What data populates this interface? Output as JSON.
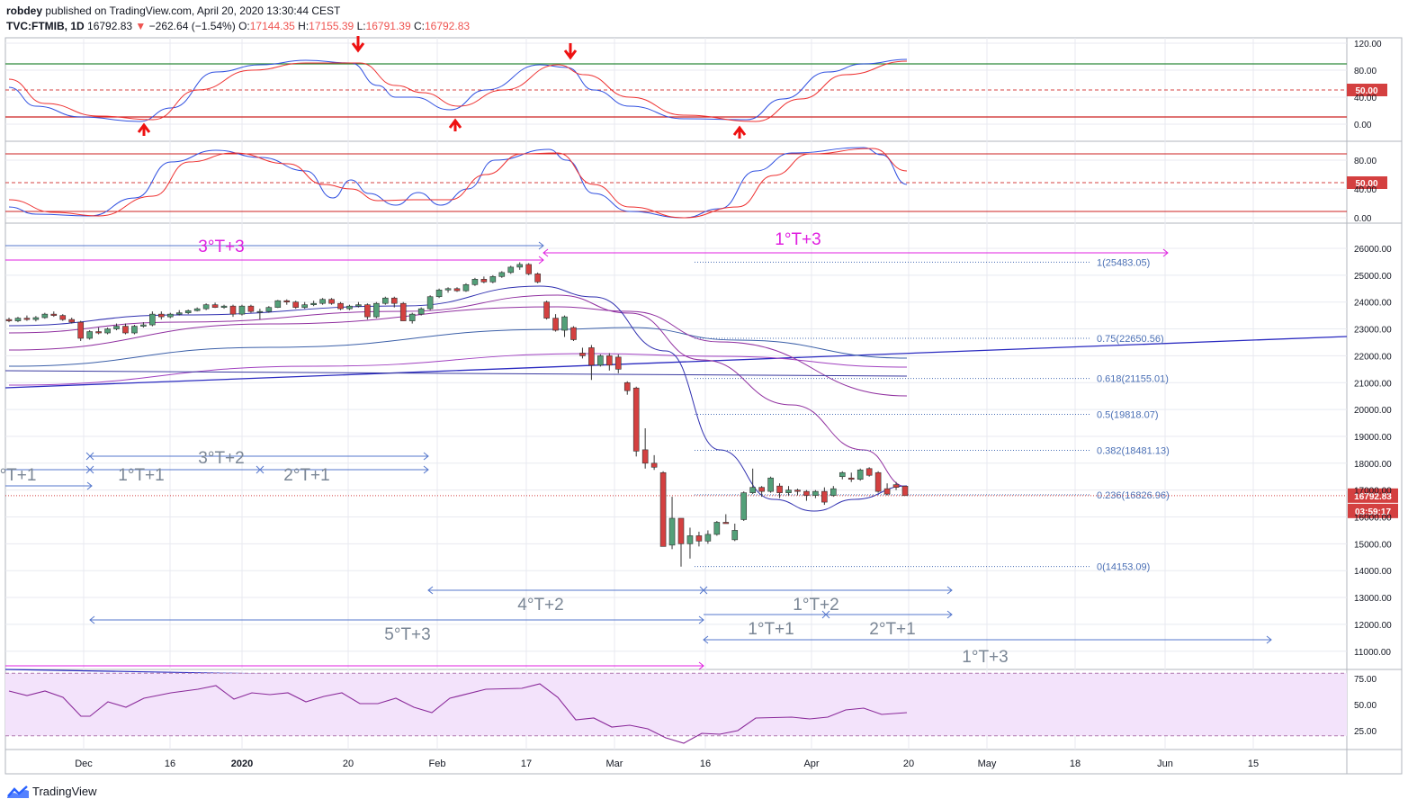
{
  "header": {
    "author": "robdey",
    "published": "published on TradingView.com, April 20, 2020 13:30:44 CEST",
    "symbol": "TVC:FTMIB, 1D",
    "last": "16792.83",
    "change": "−262.64 (−1.54%)",
    "o_label": "O:",
    "o_value": "17144.35",
    "h_label": "H:",
    "h_value": "17155.39",
    "l_label": "L:",
    "l_value": "16791.39",
    "c_label": "C:",
    "c_value": "16792.83"
  },
  "footer": {
    "brand": "TradingView"
  },
  "colors": {
    "up": "#53a079",
    "down": "#d44040",
    "bg": "#ffffff",
    "grid": "#e8eaf0",
    "fib": "#4a6fb5",
    "magenta": "#e020e0",
    "cycle": "#5577cc"
  },
  "chart_data": [
    {
      "type": "line",
      "panel": "oscillator-1",
      "y_ticks": [
        "120.00",
        "80.00",
        "40.00",
        "0.00"
      ],
      "level_label": "50.00",
      "signal_arrows": [
        "up",
        "down",
        "up",
        "down",
        "up"
      ]
    },
    {
      "type": "line",
      "panel": "oscillator-2",
      "y_ticks": [
        "80.00",
        "40.00",
        "0.00"
      ],
      "level_label": "50.00"
    },
    {
      "type": "candlestick",
      "panel": "price",
      "x_ticks": [
        "Dec",
        "16",
        "2020",
        "20",
        "Feb",
        "17",
        "Mar",
        "16",
        "Apr",
        "20",
        "May",
        "18",
        "Jun",
        "15"
      ],
      "y_ticks": [
        "26000.00",
        "25000.00",
        "24000.00",
        "23000.00",
        "22000.00",
        "21000.00",
        "20000.00",
        "19000.00",
        "18000.00",
        "17000.00",
        "16000.00",
        "15000.00",
        "14000.00",
        "13000.00",
        "12000.00",
        "11000.00"
      ],
      "ylim": [
        10300,
        26800
      ],
      "last_price_label": "16792.83",
      "countdown_label": "03:59:17",
      "fibonacci": [
        {
          "label": "1(25483.05)",
          "price": 25483.05
        },
        {
          "label": "0.75(22650.56)",
          "price": 22650.56
        },
        {
          "label": "0.618(21155.01)",
          "price": 21155.01
        },
        {
          "label": "0.5(19818.07)",
          "price": 19818.07
        },
        {
          "label": "0.382(18481.13)",
          "price": 18481.13
        },
        {
          "label": "0.236(16826.96)",
          "price": 16826.96
        },
        {
          "label": "0(14153.09)",
          "price": 14153.09
        }
      ],
      "cycle_labels": [
        "3°T+3",
        "1°T+3",
        "3°T+2",
        "°T+1",
        "1°T+1",
        "2°T+1",
        "4°T+2",
        "1°T+2",
        "5°T+3",
        "1°T+1",
        "2°T+1",
        "1°T+3"
      ],
      "candles": [
        {
          "o": 23350,
          "h": 23420,
          "l": 23250,
          "c": 23300
        },
        {
          "o": 23300,
          "h": 23450,
          "l": 23250,
          "c": 23400
        },
        {
          "o": 23400,
          "h": 23500,
          "l": 23300,
          "c": 23350
        },
        {
          "o": 23350,
          "h": 23480,
          "l": 23280,
          "c": 23420
        },
        {
          "o": 23420,
          "h": 23600,
          "l": 23380,
          "c": 23550
        },
        {
          "o": 23550,
          "h": 23650,
          "l": 23450,
          "c": 23500
        },
        {
          "o": 23500,
          "h": 23550,
          "l": 23300,
          "c": 23350
        },
        {
          "o": 23350,
          "h": 23420,
          "l": 23200,
          "c": 23250
        },
        {
          "o": 23250,
          "h": 23300,
          "l": 22550,
          "c": 22650
        },
        {
          "o": 22650,
          "h": 22950,
          "l": 22600,
          "c": 22900
        },
        {
          "o": 22900,
          "h": 23050,
          "l": 22800,
          "c": 22850
        },
        {
          "o": 22850,
          "h": 23050,
          "l": 22800,
          "c": 23000
        },
        {
          "o": 23000,
          "h": 23200,
          "l": 22950,
          "c": 23100
        },
        {
          "o": 23100,
          "h": 23200,
          "l": 22800,
          "c": 22850
        },
        {
          "o": 22850,
          "h": 23150,
          "l": 22800,
          "c": 23100
        },
        {
          "o": 23100,
          "h": 23250,
          "l": 23050,
          "c": 23150
        },
        {
          "o": 23150,
          "h": 23650,
          "l": 23100,
          "c": 23550
        },
        {
          "o": 23550,
          "h": 23650,
          "l": 23350,
          "c": 23450
        },
        {
          "o": 23450,
          "h": 23600,
          "l": 23400,
          "c": 23550
        },
        {
          "o": 23550,
          "h": 23700,
          "l": 23500,
          "c": 23600
        },
        {
          "o": 23600,
          "h": 23720,
          "l": 23550,
          "c": 23680
        },
        {
          "o": 23680,
          "h": 23800,
          "l": 23650,
          "c": 23750
        },
        {
          "o": 23750,
          "h": 23950,
          "l": 23700,
          "c": 23900
        },
        {
          "o": 23900,
          "h": 23980,
          "l": 23780,
          "c": 23800
        },
        {
          "o": 23800,
          "h": 23900,
          "l": 23750,
          "c": 23850
        },
        {
          "o": 23850,
          "h": 23900,
          "l": 23450,
          "c": 23550
        },
        {
          "o": 23550,
          "h": 23900,
          "l": 23500,
          "c": 23850
        },
        {
          "o": 23850,
          "h": 23900,
          "l": 23600,
          "c": 23650
        },
        {
          "o": 23650,
          "h": 23750,
          "l": 23350,
          "c": 23650
        },
        {
          "o": 23650,
          "h": 23850,
          "l": 23600,
          "c": 23800
        },
        {
          "o": 23800,
          "h": 24080,
          "l": 23780,
          "c": 24050
        },
        {
          "o": 24050,
          "h": 24100,
          "l": 23900,
          "c": 24000
        },
        {
          "o": 24000,
          "h": 24050,
          "l": 23750,
          "c": 23800
        },
        {
          "o": 23800,
          "h": 24000,
          "l": 23750,
          "c": 23900
        },
        {
          "o": 23900,
          "h": 24050,
          "l": 23850,
          "c": 23950
        },
        {
          "o": 23950,
          "h": 24150,
          "l": 23900,
          "c": 24100
        },
        {
          "o": 24100,
          "h": 24150,
          "l": 23900,
          "c": 23950
        },
        {
          "o": 23950,
          "h": 24000,
          "l": 23700,
          "c": 23750
        },
        {
          "o": 23750,
          "h": 23900,
          "l": 23700,
          "c": 23850
        },
        {
          "o": 23850,
          "h": 24000,
          "l": 23800,
          "c": 23900
        },
        {
          "o": 23900,
          "h": 23950,
          "l": 23350,
          "c": 23450
        },
        {
          "o": 23450,
          "h": 24000,
          "l": 23400,
          "c": 23950
        },
        {
          "o": 23950,
          "h": 24200,
          "l": 23900,
          "c": 24150
        },
        {
          "o": 24150,
          "h": 24200,
          "l": 23800,
          "c": 23950
        },
        {
          "o": 23950,
          "h": 24000,
          "l": 23300,
          "c": 23300
        },
        {
          "o": 23300,
          "h": 23600,
          "l": 23200,
          "c": 23550
        },
        {
          "o": 23550,
          "h": 23800,
          "l": 23500,
          "c": 23750
        },
        {
          "o": 23750,
          "h": 24250,
          "l": 23700,
          "c": 24200
        },
        {
          "o": 24200,
          "h": 24500,
          "l": 24150,
          "c": 24450
        },
        {
          "o": 24450,
          "h": 24550,
          "l": 24350,
          "c": 24500
        },
        {
          "o": 24500,
          "h": 24550,
          "l": 24380,
          "c": 24420
        },
        {
          "o": 24420,
          "h": 24700,
          "l": 24380,
          "c": 24650
        },
        {
          "o": 24650,
          "h": 24900,
          "l": 24600,
          "c": 24850
        },
        {
          "o": 24850,
          "h": 24950,
          "l": 24700,
          "c": 24750
        },
        {
          "o": 24750,
          "h": 25000,
          "l": 24700,
          "c": 24950
        },
        {
          "o": 24950,
          "h": 25150,
          "l": 24900,
          "c": 25100
        },
        {
          "o": 25100,
          "h": 25350,
          "l": 25050,
          "c": 25300
        },
        {
          "o": 25300,
          "h": 25480,
          "l": 25200,
          "c": 25400
        },
        {
          "o": 25400,
          "h": 25450,
          "l": 25000,
          "c": 25050
        },
        {
          "o": 25050,
          "h": 25100,
          "l": 24700,
          "c": 24750
        },
        {
          "o": 24000,
          "h": 24050,
          "l": 23350,
          "c": 23400
        },
        {
          "o": 23400,
          "h": 23550,
          "l": 22900,
          "c": 22950
        },
        {
          "o": 22950,
          "h": 23500,
          "l": 22700,
          "c": 23450
        },
        {
          "o": 23050,
          "h": 23100,
          "l": 22550,
          "c": 22600
        },
        {
          "o": 22100,
          "h": 22300,
          "l": 21900,
          "c": 22000
        },
        {
          "o": 22300,
          "h": 22400,
          "l": 21100,
          "c": 21650
        },
        {
          "o": 21650,
          "h": 22050,
          "l": 21600,
          "c": 22000
        },
        {
          "o": 22000,
          "h": 22100,
          "l": 21450,
          "c": 21650
        },
        {
          "o": 21950,
          "h": 22050,
          "l": 21350,
          "c": 21500
        },
        {
          "o": 21000,
          "h": 21050,
          "l": 20550,
          "c": 20700
        },
        {
          "o": 20800,
          "h": 20850,
          "l": 18250,
          "c": 18450
        },
        {
          "o": 18500,
          "h": 19300,
          "l": 17800,
          "c": 18000
        },
        {
          "o": 18000,
          "h": 18300,
          "l": 17750,
          "c": 17850
        },
        {
          "o": 17650,
          "h": 17700,
          "l": 14900,
          "c": 14900
        },
        {
          "o": 14950,
          "h": 16750,
          "l": 14800,
          "c": 15950
        },
        {
          "o": 15950,
          "h": 15950,
          "l": 14150,
          "c": 15000
        },
        {
          "o": 15000,
          "h": 15600,
          "l": 14450,
          "c": 15300
        },
        {
          "o": 15300,
          "h": 15450,
          "l": 14900,
          "c": 15100
        },
        {
          "o": 15100,
          "h": 15500,
          "l": 15000,
          "c": 15350
        },
        {
          "o": 15350,
          "h": 15850,
          "l": 15300,
          "c": 15800
        },
        {
          "o": 15800,
          "h": 16100,
          "l": 15750,
          "c": 15750
        },
        {
          "o": 15150,
          "h": 15750,
          "l": 15100,
          "c": 15500
        },
        {
          "o": 15900,
          "h": 16950,
          "l": 15850,
          "c": 16900
        },
        {
          "o": 16900,
          "h": 17800,
          "l": 16850,
          "c": 17100
        },
        {
          "o": 17100,
          "h": 17150,
          "l": 16750,
          "c": 16950
        },
        {
          "o": 16950,
          "h": 17500,
          "l": 16900,
          "c": 17450
        },
        {
          "o": 17150,
          "h": 17250,
          "l": 16700,
          "c": 16900
        },
        {
          "o": 16900,
          "h": 17150,
          "l": 16800,
          "c": 17000
        },
        {
          "o": 17000,
          "h": 17050,
          "l": 16800,
          "c": 16950
        },
        {
          "o": 16950,
          "h": 17000,
          "l": 16600,
          "c": 16800
        },
        {
          "o": 16800,
          "h": 17000,
          "l": 16700,
          "c": 16950
        },
        {
          "o": 16950,
          "h": 17100,
          "l": 16450,
          "c": 16550
        },
        {
          "o": 16800,
          "h": 17150,
          "l": 16750,
          "c": 17050
        },
        {
          "o": 17500,
          "h": 17700,
          "l": 17400,
          "c": 17650
        },
        {
          "o": 17450,
          "h": 17650,
          "l": 17300,
          "c": 17400
        },
        {
          "o": 17400,
          "h": 17800,
          "l": 17350,
          "c": 17750
        },
        {
          "o": 17800,
          "h": 17850,
          "l": 17500,
          "c": 17550
        },
        {
          "o": 17650,
          "h": 17700,
          "l": 16900,
          "c": 16950
        },
        {
          "o": 17050,
          "h": 17250,
          "l": 16800,
          "c": 16850
        },
        {
          "o": 17200,
          "h": 17300,
          "l": 17000,
          "c": 17100
        },
        {
          "o": 17144.35,
          "h": 17155.39,
          "l": 16791.39,
          "c": 16792.83
        }
      ]
    },
    {
      "type": "line",
      "panel": "rsi",
      "y_ticks": [
        "75.00",
        "50.00",
        "25.00"
      ]
    }
  ]
}
